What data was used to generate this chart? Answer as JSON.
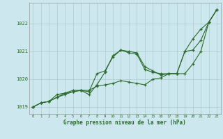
{
  "hours": [
    0,
    1,
    2,
    3,
    4,
    5,
    6,
    7,
    8,
    9,
    10,
    11,
    12,
    13,
    14,
    15,
    16,
    17,
    18,
    19,
    20,
    21,
    22,
    23
  ],
  "line1": [
    1019.0,
    1019.15,
    1019.2,
    1019.35,
    1019.45,
    1019.55,
    1019.6,
    1019.6,
    1019.75,
    1019.8,
    1019.85,
    1019.95,
    1019.9,
    1019.85,
    1019.8,
    1020.0,
    1020.05,
    1020.2,
    1020.2,
    1020.2,
    1020.55,
    1021.0,
    1022.05,
    1022.5
  ],
  "line2": [
    1019.0,
    1019.15,
    1019.2,
    1019.35,
    1019.5,
    1019.55,
    1019.6,
    1019.45,
    1019.8,
    1020.25,
    1020.85,
    1021.05,
    1021.0,
    1020.95,
    1020.45,
    1020.3,
    1020.15,
    1020.2,
    1020.2,
    1021.0,
    1021.45,
    1021.8,
    1022.05,
    1022.5
  ],
  "line3": [
    1019.0,
    1019.15,
    1019.2,
    1019.45,
    1019.5,
    1019.6,
    1019.6,
    1019.55,
    1020.2,
    1020.3,
    1020.8,
    1021.05,
    1020.95,
    1020.9,
    1020.35,
    1020.25,
    1020.2,
    1020.2,
    1020.2,
    1021.0,
    1021.05,
    1021.4,
    1022.05,
    1022.5
  ],
  "line_color": "#2d6a2d",
  "bg_color": "#cce8ee",
  "grid_color": "#aacccc",
  "xlabel": "Graphe pression niveau de la mer (hPa)",
  "ylim": [
    1018.75,
    1022.75
  ],
  "yticks": [
    1019,
    1020,
    1021,
    1022
  ],
  "xticks": [
    0,
    1,
    2,
    3,
    4,
    5,
    6,
    7,
    8,
    9,
    10,
    11,
    12,
    13,
    14,
    15,
    16,
    17,
    18,
    19,
    20,
    21,
    22,
    23
  ]
}
